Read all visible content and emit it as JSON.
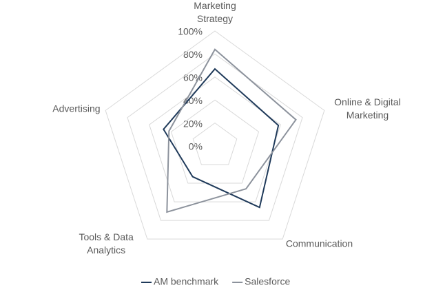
{
  "chart_data": {
    "type": "radar",
    "categories": [
      "Marketing Strategy",
      "Online & Digital Marketing",
      "Communication",
      "Tools & Data Analytics",
      "Advertising"
    ],
    "series": [
      {
        "name": "AM benchmark",
        "color": "#1f3a5a",
        "values": [
          67,
          58,
          66,
          33,
          47
        ]
      },
      {
        "name": "Salesforce",
        "color": "#8c929c",
        "values": [
          84,
          74,
          46,
          71,
          42
        ]
      }
    ],
    "ylim": [
      0,
      100
    ],
    "yticks": [
      {
        "value": 0,
        "label": "0%"
      },
      {
        "value": 20,
        "label": "20%"
      },
      {
        "value": 40,
        "label": "40%"
      },
      {
        "value": 60,
        "label": "60%"
      },
      {
        "value": 80,
        "label": "80%"
      },
      {
        "value": 100,
        "label": "100%"
      }
    ],
    "grid": true,
    "legend": "bottom"
  }
}
